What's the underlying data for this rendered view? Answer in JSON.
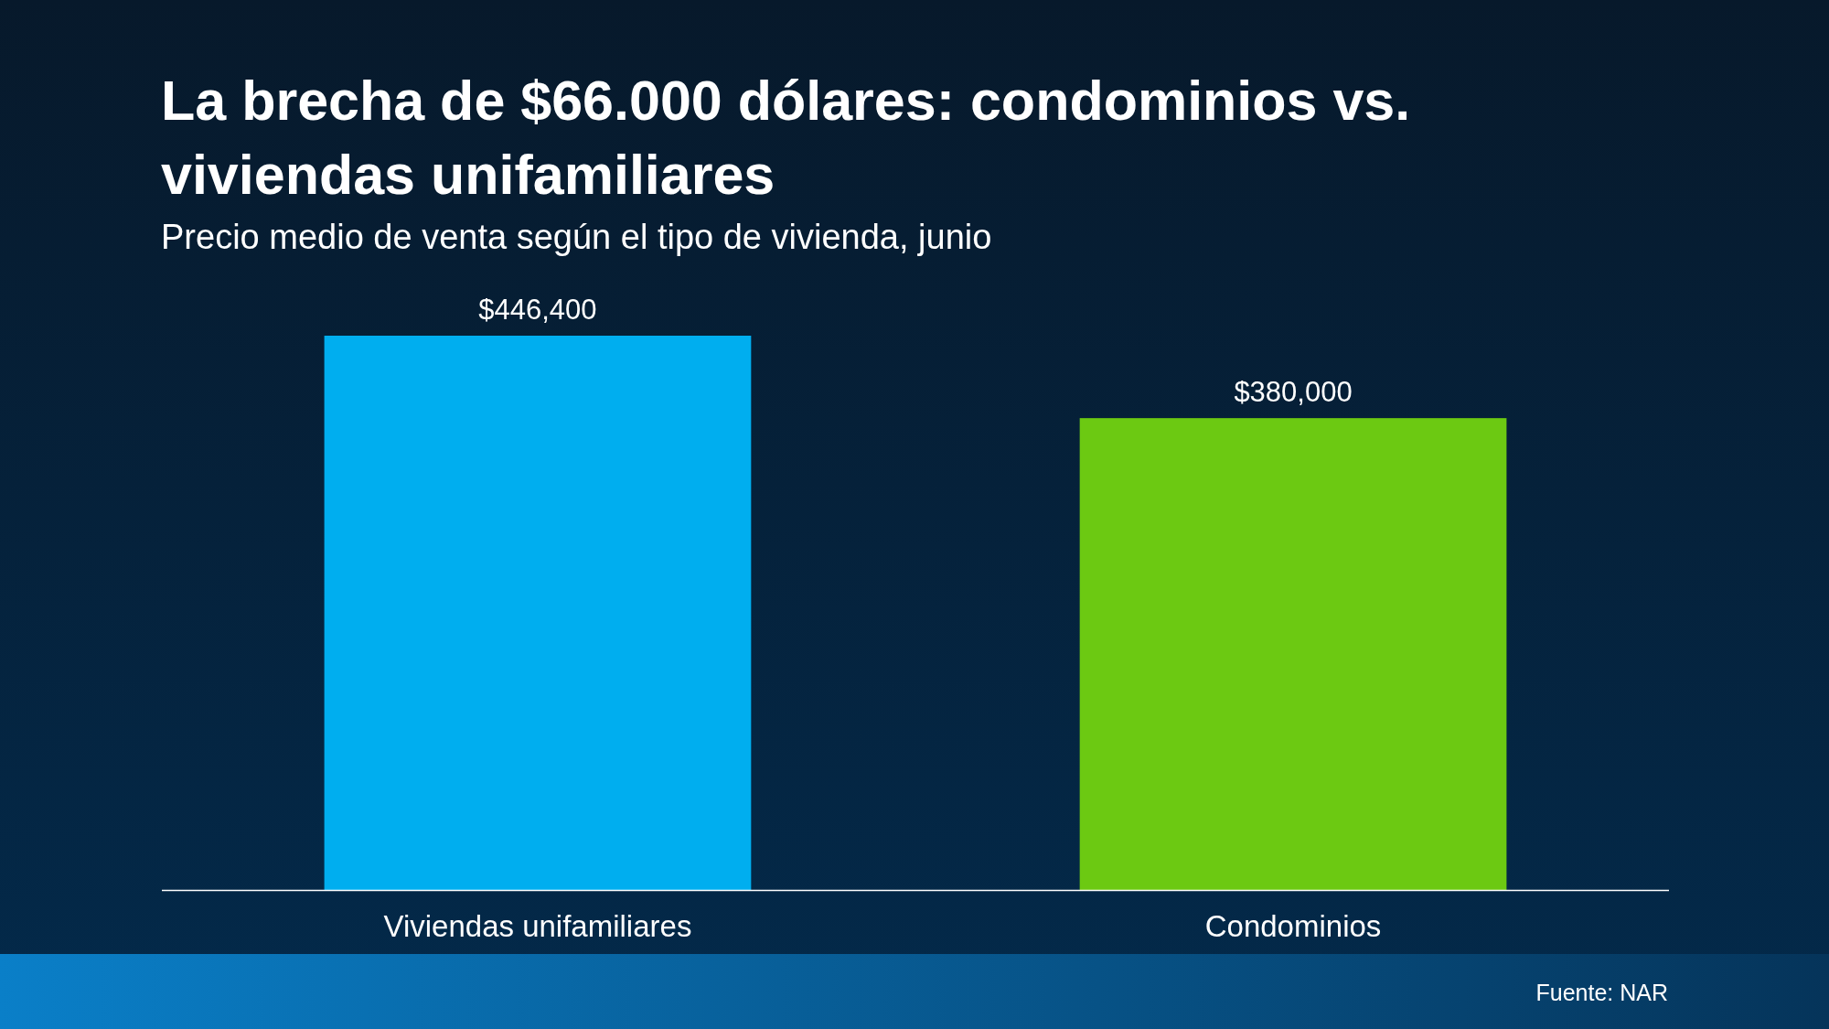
{
  "chart_data": {
    "type": "bar",
    "title": "La brecha de $66.000 dólares: condominios vs. viviendas unifamiliares",
    "subtitle": "Precio medio de venta según el tipo de vivienda, junio",
    "categories": [
      "Viviendas unifamiliares",
      "Condominios"
    ],
    "values": [
      446400,
      380000
    ],
    "colors": [
      "#00aeef",
      "#6cc912"
    ],
    "value_labels": [
      "$446,400",
      "$380,000"
    ],
    "annotations": [
      "Fuente: NAR"
    ]
  }
}
